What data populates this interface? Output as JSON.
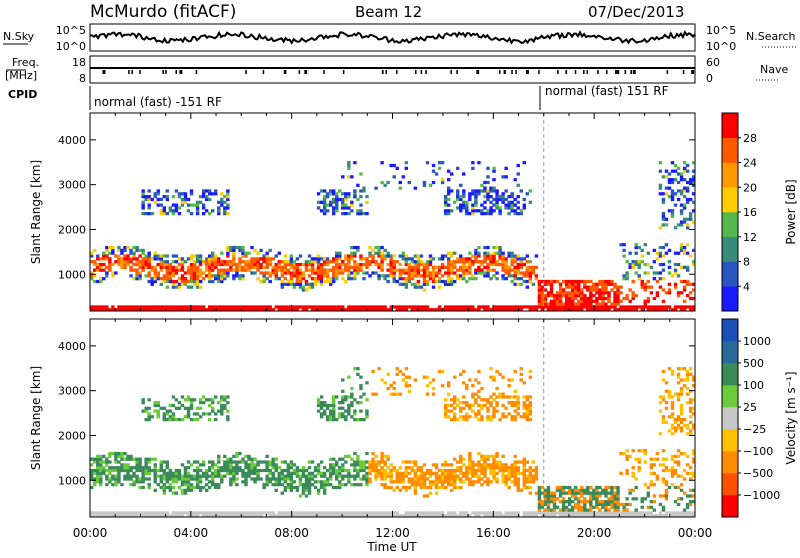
{
  "header": {
    "station": "McMurdo (fitACF)",
    "beam": "Beam 12",
    "date": "07/Dec/2013"
  },
  "strip_labels": {
    "nsky": "N.Sky",
    "nsky_ticks": [
      "10^5",
      "10^0"
    ],
    "nsearch": "N.Search",
    "nsearch_ticks": [
      "10^5",
      "10^0"
    ],
    "freq_line1": "Freq.",
    "freq_line2": "[MHz]",
    "freq_ticks": [
      "18",
      "8"
    ],
    "nave": "Nave",
    "nave_ticks": [
      "60",
      "0"
    ],
    "cpid": "CPID",
    "cpid_modes": [
      "normal (fast) -151 RF",
      "normal (fast) 151 RF"
    ]
  },
  "colors": {
    "power": [
      "#1a1aff",
      "#2a55bf",
      "#3a8a7a",
      "#55b84a",
      "#ffcc00",
      "#ff9900",
      "#ff5a00",
      "#ff0000"
    ],
    "velocity": [
      "#1a4fb8",
      "#2a6a9a",
      "#3a8a5a",
      "#6acc3a",
      "#c8c8c8",
      "#ffc000",
      "#ff8c00",
      "#ff5000",
      "#ff0000"
    ]
  },
  "chart_data": [
    {
      "type": "heatmap",
      "title": "Power",
      "xlabel": "Time UT",
      "ylabel": "Slant Range [km]",
      "x_ticks": [
        "00:00",
        "04:00",
        "08:00",
        "12:00",
        "16:00",
        "20:00",
        "00:00"
      ],
      "xlim_hours": [
        0,
        24
      ],
      "y_ticks": [
        1000,
        2000,
        3000,
        4000
      ],
      "ylim": [
        180,
        4600
      ],
      "colorbar": {
        "label": "Power [dB]",
        "ticks": [
          4,
          8,
          12,
          16,
          20,
          24,
          28
        ],
        "range": [
          0,
          32
        ]
      }
    },
    {
      "type": "heatmap",
      "title": "Velocity",
      "xlabel": "Time UT",
      "ylabel": "Slant Range [km]",
      "x_ticks": [
        "00:00",
        "04:00",
        "08:00",
        "12:00",
        "16:00",
        "20:00",
        "00:00"
      ],
      "xlim_hours": [
        0,
        24
      ],
      "y_ticks": [
        1000,
        2000,
        3000,
        4000
      ],
      "ylim": [
        180,
        4600
      ],
      "colorbar": {
        "label": "Velocity [m s⁻¹]",
        "ticks": [
          "1000",
          "500",
          "100",
          "25",
          "−25",
          "−100",
          "−500",
          "−1000"
        ]
      }
    }
  ]
}
